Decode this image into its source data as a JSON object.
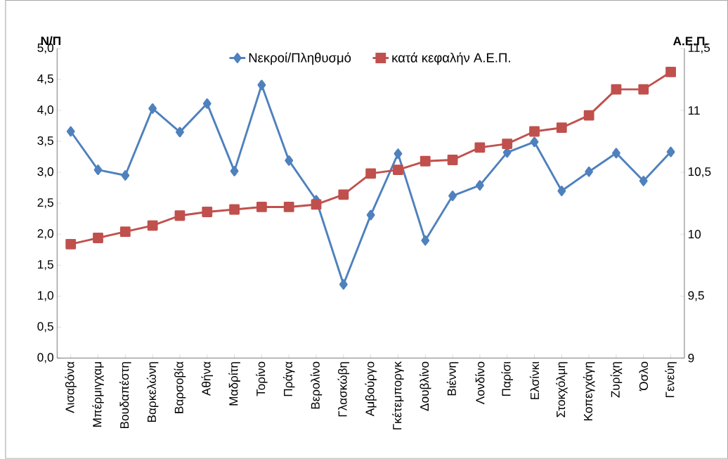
{
  "chart_data": {
    "type": "line",
    "ylabel": "Ν/Π",
    "y2label": "Α.Ε.Π.",
    "categories": [
      "Λισαβόνα",
      "Μπέρμιγχαμ",
      "Βουδαπέστη",
      "Βαρκελώνη",
      "Βαρσοβία",
      "Αθήνα",
      "Μαδρίτη",
      "Τορίνο",
      "Πράγα",
      "Βερολίνο",
      "Γλασκώβη",
      "Αμβούργο",
      "Γκέτεμποργκ",
      "Δουβλίνο",
      "Βιέννη",
      "Λονδίνο",
      "Παρίσι",
      "Ελσίνκι",
      "Στοκχόλμη",
      "Κοπεγχάγη",
      "Ζυρίχη",
      "Όσλο",
      "Γενεύη"
    ],
    "series": [
      {
        "name": "Νεκροί/Πληθυσμό",
        "color": "#4f81bd",
        "marker": "diamond",
        "values": [
          3.66,
          3.04,
          2.95,
          4.03,
          3.65,
          4.11,
          3.02,
          4.41,
          3.19,
          2.55,
          1.19,
          2.31,
          3.3,
          1.9,
          2.62,
          2.79,
          3.32,
          3.49,
          2.7,
          3.01,
          3.31,
          2.86,
          3.33
        ]
      },
      {
        "name": "κατά κεφαλήν Α.Ε.Π.",
        "color": "#c0504d",
        "marker": "square",
        "axis": "y2",
        "values": [
          9.92,
          9.97,
          10.02,
          10.07,
          10.15,
          10.18,
          10.2,
          10.22,
          10.22,
          10.24,
          10.32,
          10.49,
          10.52,
          10.59,
          10.6,
          10.7,
          10.73,
          10.83,
          10.86,
          10.96,
          11.17,
          11.17,
          11.31
        ]
      }
    ],
    "ylim": [
      0,
      5
    ],
    "yticks": [
      {
        "value": 0,
        "label": "0,0"
      },
      {
        "value": 0.5,
        "label": "0,5"
      },
      {
        "value": 1,
        "label": "1,0"
      },
      {
        "value": 1.5,
        "label": "1,5"
      },
      {
        "value": 2,
        "label": "2,0"
      },
      {
        "value": 2.5,
        "label": "2,5"
      },
      {
        "value": 3,
        "label": "3,0"
      },
      {
        "value": 3.5,
        "label": "3,5"
      },
      {
        "value": 4,
        "label": "4,0"
      },
      {
        "value": 4.5,
        "label": "4,5"
      },
      {
        "value": 5,
        "label": "5,0"
      }
    ],
    "y2lim": [
      9,
      11.5
    ],
    "y2ticks": [
      9,
      {
        "value": 9.5,
        "label": "9,5"
      },
      10,
      {
        "value": 10.5,
        "label": "10,5"
      },
      11,
      {
        "value": 11.5,
        "label": "11,5"
      }
    ],
    "legend": "top",
    "grid": false
  }
}
